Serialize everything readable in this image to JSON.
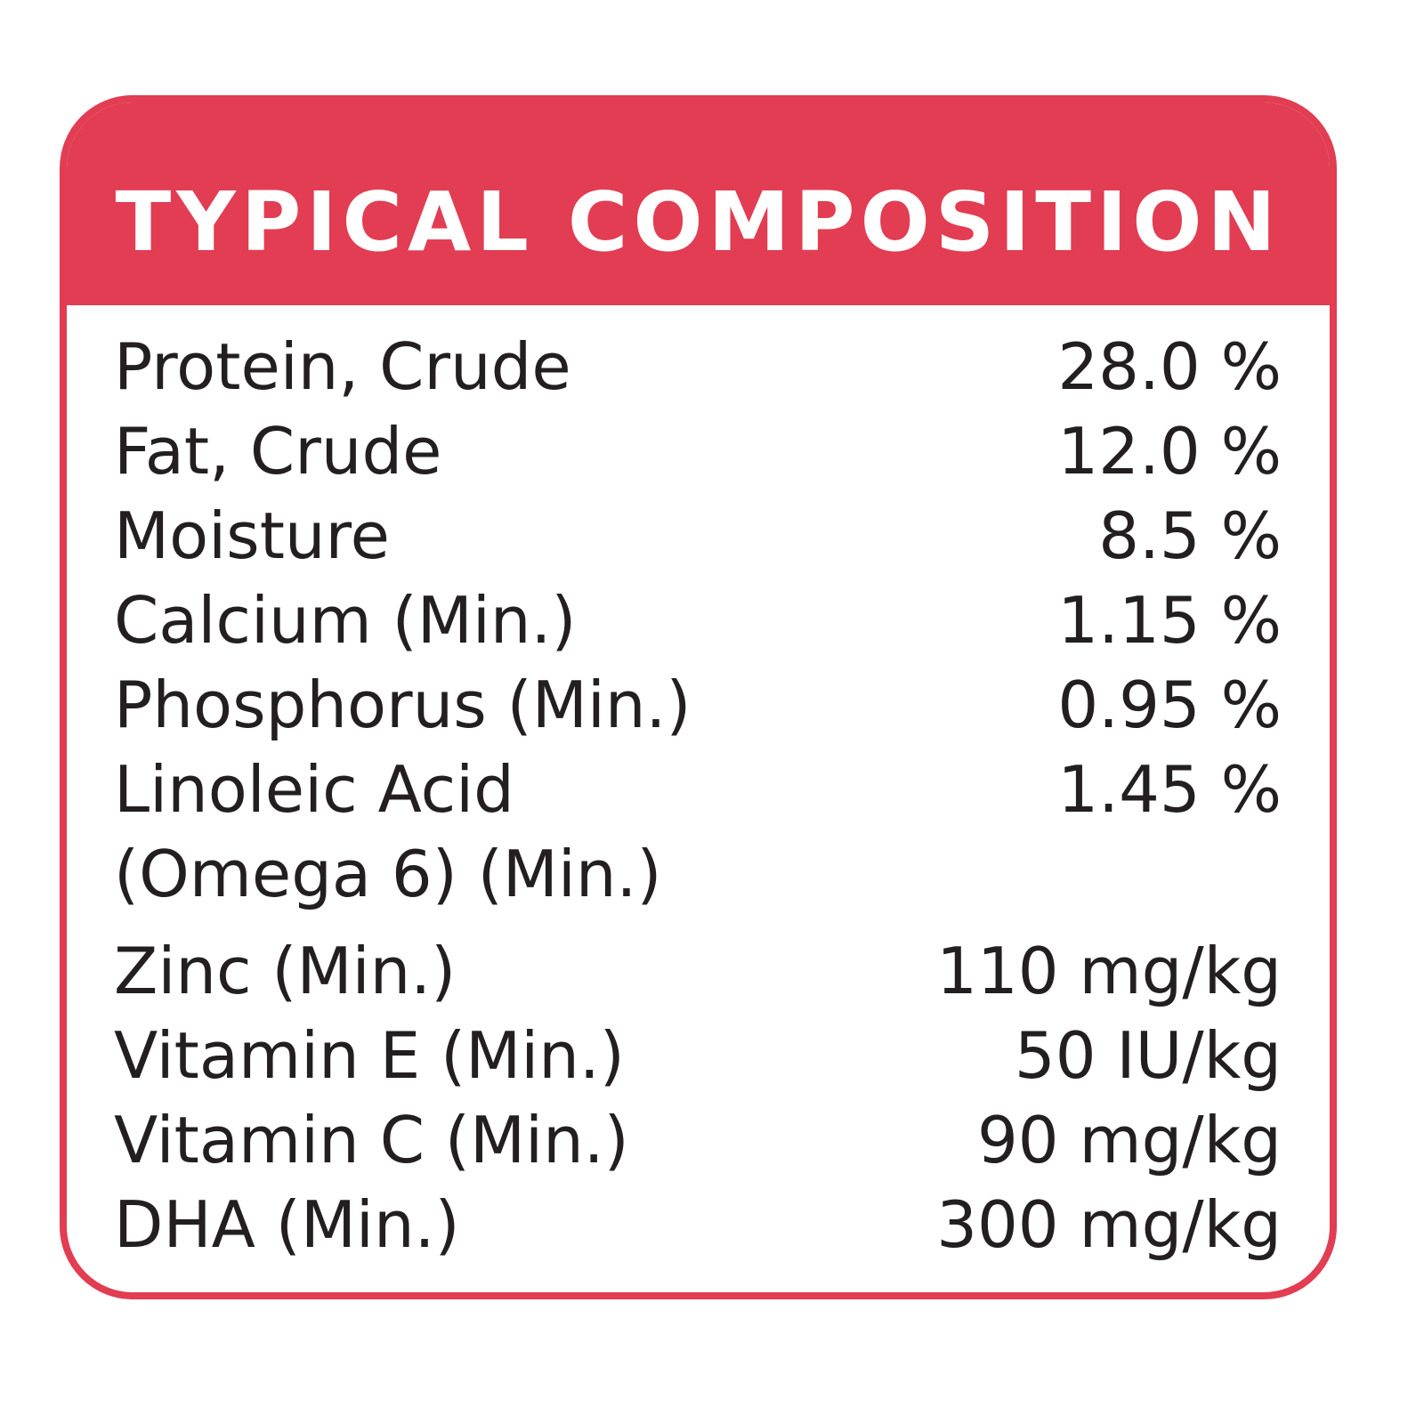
{
  "header": {
    "title": "TYPICAL COMPOSITION"
  },
  "table": {
    "rows": [
      [
        "Protein, Crude",
        "28.0 %"
      ],
      [
        "Fat, Crude",
        "12.0 %"
      ],
      [
        "Moisture",
        "8.5 %"
      ],
      [
        "Calcium (Min.)",
        "1.15 %"
      ],
      [
        "Phosphorus (Min.)",
        "0.95 %"
      ],
      [
        "Linoleic Acid\n(Omega 6) (Min.)",
        "1.45 %"
      ],
      [
        "Zinc (Min.)",
        "110 mg/kg"
      ],
      [
        "Vitamin E (Min.)",
        "50 IU/kg"
      ],
      [
        "Vitamin C (Min.)",
        "90 mg/kg"
      ],
      [
        "DHA (Min.)",
        "300 mg/kg"
      ]
    ]
  }
}
